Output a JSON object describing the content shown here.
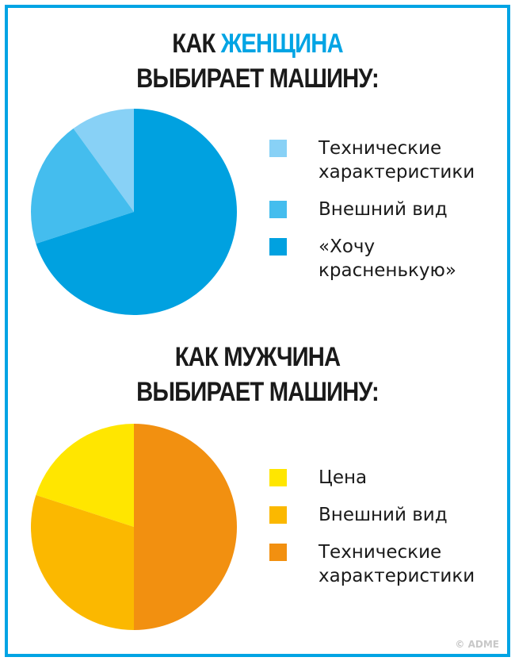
{
  "chart_data": [
    {
      "type": "pie",
      "title_prefix": "КАК ",
      "title_accent": "ЖЕНЩИНА",
      "title_line2": "ВЫБИРАЕТ МАШИНУ:",
      "labels": [
        "Технические характеристики",
        "Внешний вид",
        "«Хочу красненькую»"
      ],
      "values": [
        10,
        20,
        70
      ],
      "colors": [
        "#88d1f6",
        "#44bdee",
        "#00a1e0"
      ],
      "legend": [
        {
          "line1": "Технические",
          "line2": "характеристики"
        },
        {
          "line1": "Внешний вид",
          "line2": ""
        },
        {
          "line1": "«Хочу",
          "line2": "красненькую»"
        }
      ]
    },
    {
      "type": "pie",
      "title_line1": "КАК МУЖЧИНА",
      "title_line2": "ВЫБИРАЕТ МАШИНУ:",
      "labels": [
        "Цена",
        "Внешний вид",
        "Технические характеристики"
      ],
      "values": [
        20,
        30,
        50
      ],
      "colors": [
        "#ffe600",
        "#fbb800",
        "#f29010"
      ],
      "legend": [
        {
          "line1": "Цена",
          "line2": ""
        },
        {
          "line1": "Внешний вид",
          "line2": ""
        },
        {
          "line1": "Технические",
          "line2": "характеристики"
        }
      ]
    }
  ],
  "watermark": "© ADME"
}
